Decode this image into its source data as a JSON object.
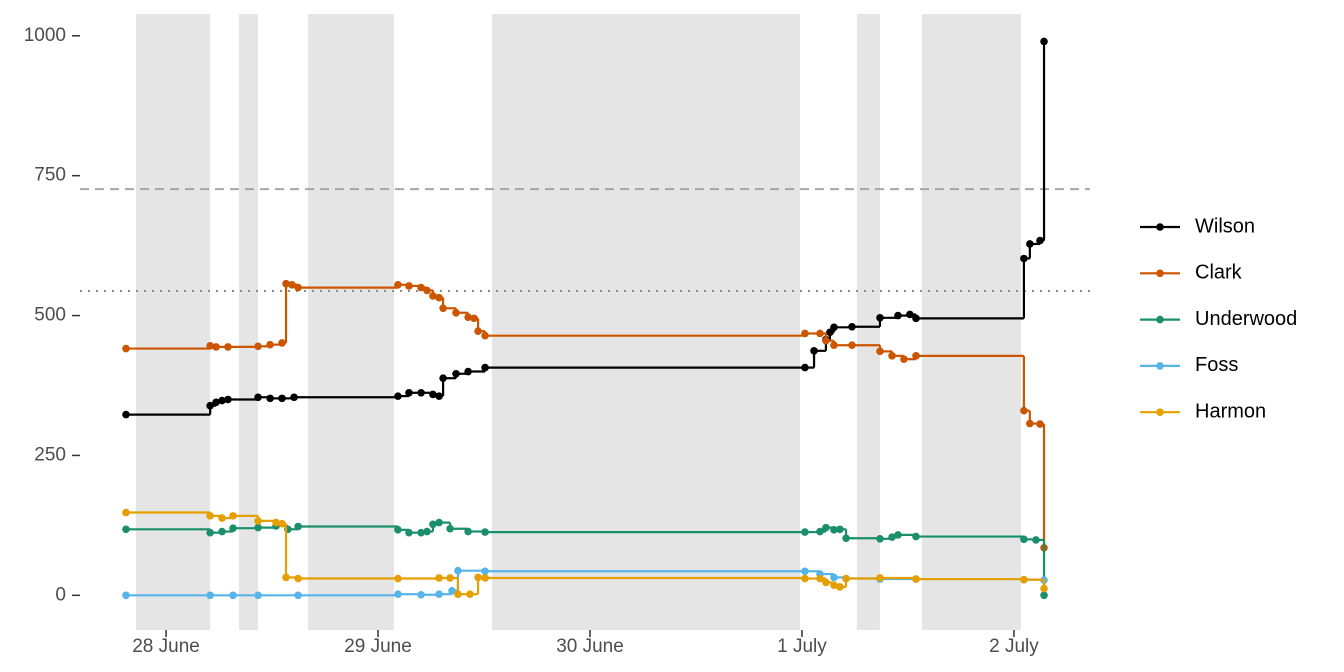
{
  "chart_data": {
    "type": "step",
    "xlim": [
      -0.406,
      4.406
    ],
    "ylim": [
      -62,
      1039
    ],
    "xticks": [
      {
        "value": 0,
        "label": "28 June"
      },
      {
        "value": 1,
        "label": "29 June"
      },
      {
        "value": 2,
        "label": "30 June"
      },
      {
        "value": 3,
        "label": "1 July"
      },
      {
        "value": 4,
        "label": "2 July"
      }
    ],
    "yticks": [
      0,
      250,
      500,
      750,
      1000
    ],
    "shaded_periods": [
      [
        -0.142,
        0.208
      ],
      [
        0.344,
        0.434
      ],
      [
        0.67,
        1.075
      ],
      [
        1.538,
        2.991
      ],
      [
        3.259,
        3.368
      ],
      [
        3.566,
        4.033
      ]
    ],
    "shade_color": "#e5e5e5",
    "reference_lines": [
      {
        "value": 726,
        "style": "dashed",
        "color": "#a6a6a6"
      },
      {
        "value": 544,
        "style": "dotted",
        "color": "#8c8c8c"
      }
    ],
    "legend": "right",
    "series": [
      {
        "name": "Wilson",
        "color": "#000000",
        "x": [
          -0.189,
          0.208,
          0.236,
          0.264,
          0.292,
          0.434,
          0.491,
          0.547,
          0.604,
          1.094,
          1.146,
          1.203,
          1.259,
          1.288,
          1.307,
          1.368,
          1.425,
          1.505,
          3.014,
          3.057,
          3.113,
          3.132,
          3.151,
          3.236,
          3.368,
          3.453,
          3.509,
          3.538,
          4.047,
          4.075,
          4.123,
          4.142
        ],
        "values": [
          323,
          339,
          345,
          348,
          350,
          354,
          352,
          352,
          354,
          356,
          362,
          362,
          359,
          356,
          388,
          396,
          400,
          407,
          407,
          437,
          457,
          470,
          479,
          480,
          496,
          500,
          502,
          495,
          602,
          628,
          634,
          990
        ]
      },
      {
        "name": "Clark",
        "color": "#cc5500",
        "x": [
          -0.189,
          0.208,
          0.236,
          0.292,
          0.434,
          0.491,
          0.547,
          0.566,
          0.594,
          0.623,
          1.094,
          1.146,
          1.203,
          1.231,
          1.259,
          1.288,
          1.307,
          1.368,
          1.425,
          1.453,
          1.472,
          1.505,
          3.014,
          3.085,
          3.113,
          3.151,
          3.236,
          3.368,
          3.425,
          3.481,
          3.538,
          4.047,
          4.075,
          4.123,
          4.142
        ],
        "values": [
          441,
          446,
          444,
          444,
          445,
          448,
          451,
          557,
          555,
          550,
          555,
          553,
          550,
          545,
          535,
          532,
          513,
          505,
          497,
          495,
          472,
          464,
          468,
          468,
          455,
          447,
          447,
          436,
          428,
          422,
          428,
          330,
          307,
          306,
          85
        ]
      },
      {
        "name": "Underwood",
        "color": "#1a8f6a",
        "x": [
          -0.189,
          0.208,
          0.264,
          0.316,
          0.434,
          0.519,
          0.575,
          0.623,
          1.094,
          1.146,
          1.203,
          1.231,
          1.259,
          1.288,
          1.34,
          1.425,
          1.505,
          3.014,
          3.085,
          3.113,
          3.151,
          3.179,
          3.208,
          3.368,
          3.425,
          3.453,
          3.538,
          4.047,
          4.104,
          4.142
        ],
        "values": [
          118,
          112,
          114,
          120,
          121,
          124,
          118,
          123,
          117,
          112,
          112,
          114,
          127,
          130,
          119,
          114,
          113,
          113,
          114,
          121,
          117,
          118,
          102,
          101,
          104,
          108,
          105,
          100,
          99,
          0
        ]
      },
      {
        "name": "Foss",
        "color": "#56b4e9",
        "x": [
          -0.189,
          0.208,
          0.316,
          0.434,
          0.623,
          1.094,
          1.203,
          1.288,
          1.349,
          1.377,
          1.505,
          3.014,
          3.085,
          3.151,
          3.208,
          3.368,
          3.538,
          4.047,
          4.142
        ],
        "values": [
          0,
          0,
          0,
          0,
          0,
          2,
          1,
          2,
          8,
          44,
          43,
          43,
          38,
          32,
          30,
          29,
          29,
          28,
          27
        ]
      },
      {
        "name": "Harmon",
        "color": "#e69f00",
        "x": [
          -0.189,
          0.208,
          0.264,
          0.316,
          0.434,
          0.519,
          0.547,
          0.566,
          0.623,
          1.094,
          1.288,
          1.34,
          1.377,
          1.434,
          1.472,
          1.505,
          3.014,
          3.085,
          3.113,
          3.151,
          3.179,
          3.208,
          3.368,
          3.538,
          4.047,
          4.142
        ],
        "values": [
          148,
          142,
          138,
          142,
          133,
          130,
          128,
          32,
          30,
          30,
          31,
          31,
          2,
          2,
          32,
          31,
          30,
          30,
          23,
          18,
          15,
          30,
          31,
          29,
          28,
          12
        ]
      }
    ]
  }
}
